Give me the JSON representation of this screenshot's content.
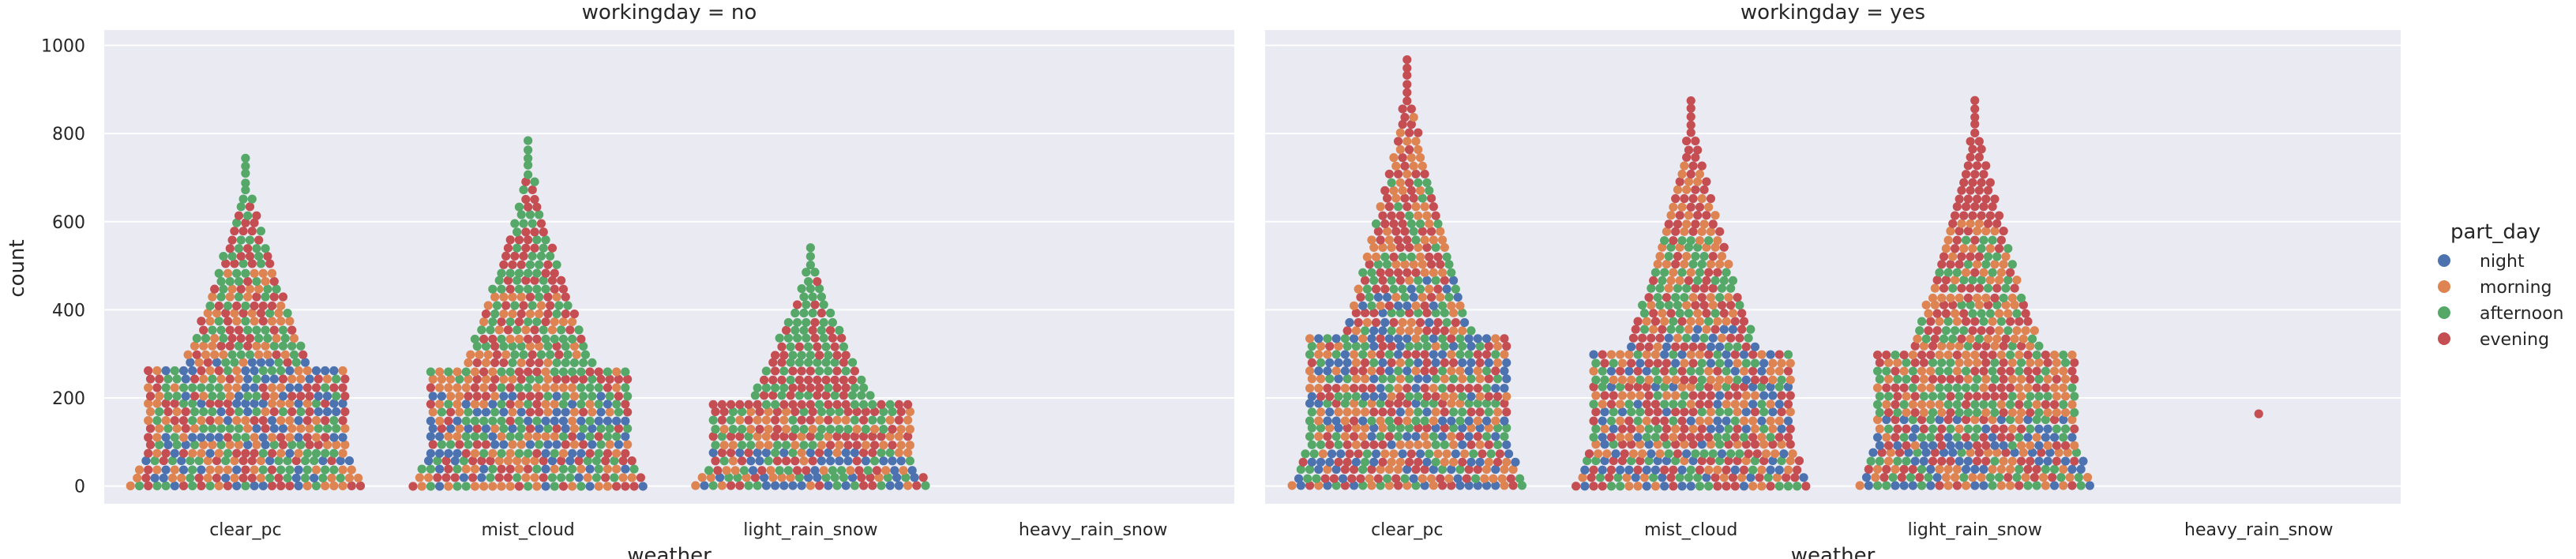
{
  "chart_data": {
    "type": "scatter",
    "title": "",
    "ylabel": "count",
    "xlabel": "weather",
    "ylim": [
      -40,
      1035
    ],
    "yticks": [
      0,
      200,
      400,
      600,
      800,
      1000
    ],
    "grid": true,
    "legend_placement": "right",
    "categories": [
      "clear_pc",
      "mist_cloud",
      "light_rain_snow",
      "heavy_rain_snow"
    ],
    "legend": {
      "title": "part_day",
      "entries": [
        {
          "name": "night",
          "color": "#4c72b0"
        },
        {
          "name": "morning",
          "color": "#dd8452"
        },
        {
          "name": "afternoon",
          "color": "#55a868"
        },
        {
          "name": "evening",
          "color": "#c44e52"
        }
      ]
    },
    "panels": [
      {
        "title": "workingday = no",
        "categories": [
          {
            "name": "clear_pc",
            "night_max": 280,
            "morning_max": 500,
            "afternoon_max": 760,
            "evening_max": 640
          },
          {
            "name": "mist_cloud",
            "night_max": 220,
            "morning_max": 440,
            "afternoon_max": 785,
            "evening_max": 730
          },
          {
            "name": "light_rain_snow",
            "night_max": 90,
            "morning_max": 170,
            "afternoon_max": 550,
            "evening_max": 470
          },
          {
            "name": "heavy_rain_snow",
            "night_max": 0,
            "morning_max": 0,
            "afternoon_max": 0,
            "evening_max": 0
          }
        ]
      },
      {
        "title": "workingday = yes",
        "categories": [
          {
            "name": "clear_pc",
            "night_max": 480,
            "morning_max": 840,
            "afternoon_max": 700,
            "evening_max": 977
          },
          {
            "name": "mist_cloud",
            "night_max": 360,
            "morning_max": 760,
            "afternoon_max": 560,
            "evening_max": 891
          },
          {
            "name": "light_rain_snow",
            "night_max": 160,
            "morning_max": 600,
            "afternoon_max": 560,
            "evening_max": 891
          },
          {
            "name": "heavy_rain_snow",
            "single_point": {
              "y": 164,
              "series": "evening"
            }
          }
        ]
      }
    ]
  }
}
